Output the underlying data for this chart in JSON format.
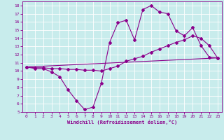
{
  "xlabel": "Windchill (Refroidissement éolien,°C)",
  "background_color": "#c8ecec",
  "line_color": "#8b008b",
  "xlim": [
    -0.5,
    23.5
  ],
  "ylim": [
    5,
    18.5
  ],
  "xticks": [
    0,
    1,
    2,
    3,
    4,
    5,
    6,
    7,
    8,
    9,
    10,
    11,
    12,
    13,
    14,
    15,
    16,
    17,
    18,
    19,
    20,
    21,
    22,
    23
  ],
  "yticks": [
    5,
    6,
    7,
    8,
    9,
    10,
    11,
    12,
    13,
    14,
    15,
    16,
    17,
    18
  ],
  "line1_x": [
    0,
    1,
    2,
    3,
    4,
    5,
    6,
    7,
    8,
    9,
    10,
    11,
    12,
    13,
    14,
    15,
    16,
    17,
    18,
    19,
    20,
    21,
    22,
    23
  ],
  "line1_y": [
    10.5,
    10.3,
    10.3,
    9.9,
    9.3,
    7.7,
    6.4,
    5.3,
    5.6,
    8.5,
    13.5,
    15.9,
    16.2,
    13.8,
    17.5,
    18.0,
    17.2,
    17.0,
    14.9,
    14.3,
    15.3,
    13.1,
    11.7,
    11.6
  ],
  "line2_x": [
    0,
    1,
    2,
    3,
    4,
    5,
    6,
    7,
    8,
    9,
    10,
    11,
    12,
    13,
    14,
    15,
    16,
    17,
    18,
    19,
    20,
    21,
    22,
    23
  ],
  "line2_y": [
    10.5,
    10.4,
    10.4,
    10.3,
    10.3,
    10.2,
    10.2,
    10.1,
    10.1,
    10.0,
    10.3,
    10.6,
    11.2,
    11.5,
    11.8,
    12.3,
    12.7,
    13.1,
    13.5,
    13.8,
    14.3,
    14.0,
    13.1,
    11.6
  ],
  "line3_x": [
    0,
    23
  ],
  "line3_y": [
    10.5,
    11.6
  ]
}
